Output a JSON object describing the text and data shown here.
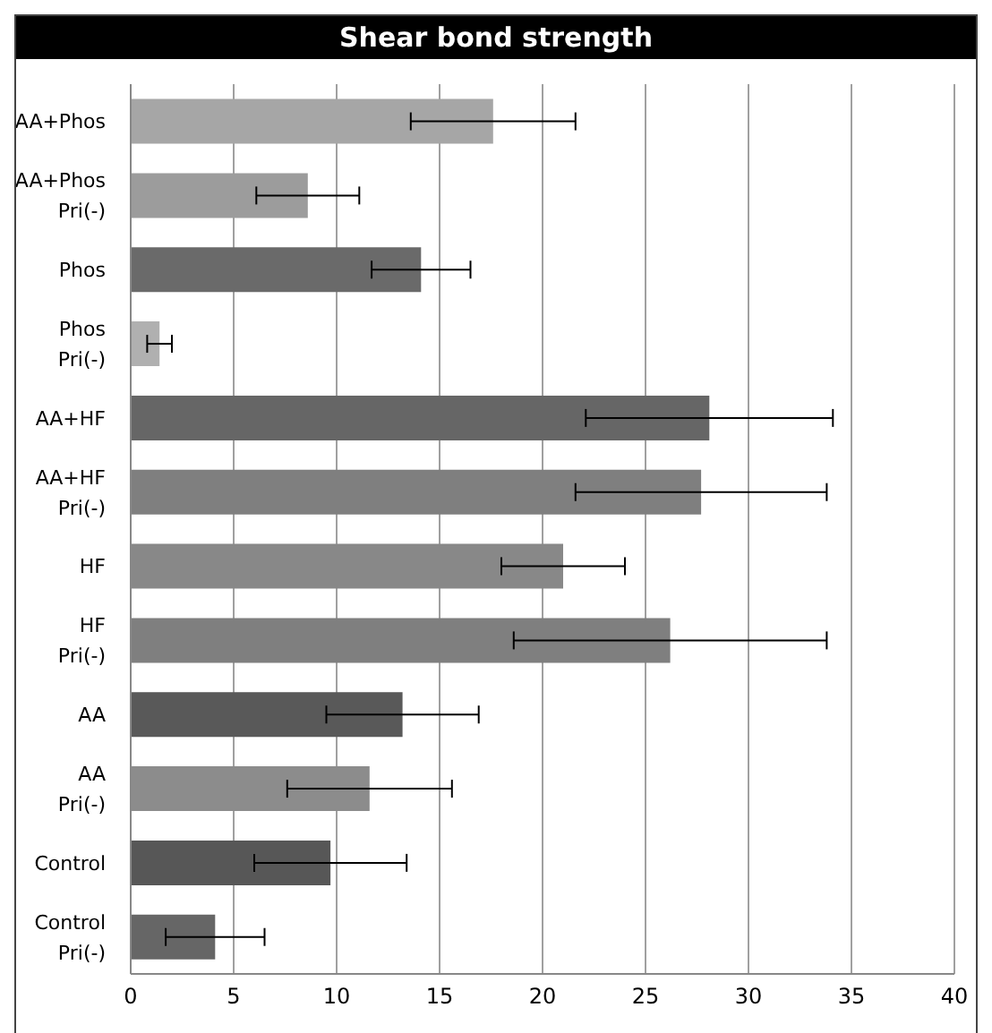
{
  "chart_data": {
    "type": "bar",
    "orientation": "horizontal",
    "title": "Shear bond strength",
    "categories": [
      "AA+Phos",
      "AA+Phos Pri(-)",
      "Phos",
      "Phos Pri(-)",
      "AA+HF",
      "AA+HF Pri(-)",
      "HF",
      "HF Pri(-)",
      "AA",
      "AA Pri(-)",
      "Control",
      "Control Pri(-)"
    ],
    "values": [
      17.6,
      8.6,
      14.1,
      1.4,
      28.1,
      27.7,
      21.0,
      26.2,
      13.2,
      11.6,
      9.7,
      4.1
    ],
    "errors": [
      4.0,
      2.5,
      2.4,
      0.6,
      6.0,
      6.1,
      3.0,
      7.6,
      3.7,
      4.0,
      3.7,
      2.4
    ],
    "colors": [
      "#a6a6a6",
      "#9c9c9c",
      "#6a6a6a",
      "#b0b0b0",
      "#666666",
      "#7f7f7f",
      "#888888",
      "#7f7f7f",
      "#595959",
      "#8c8c8c",
      "#575757",
      "#666666"
    ],
    "xlim": [
      0,
      40
    ],
    "xticks": [
      0,
      5,
      10,
      15,
      20,
      25,
      30,
      35,
      40
    ],
    "grid": "x"
  }
}
